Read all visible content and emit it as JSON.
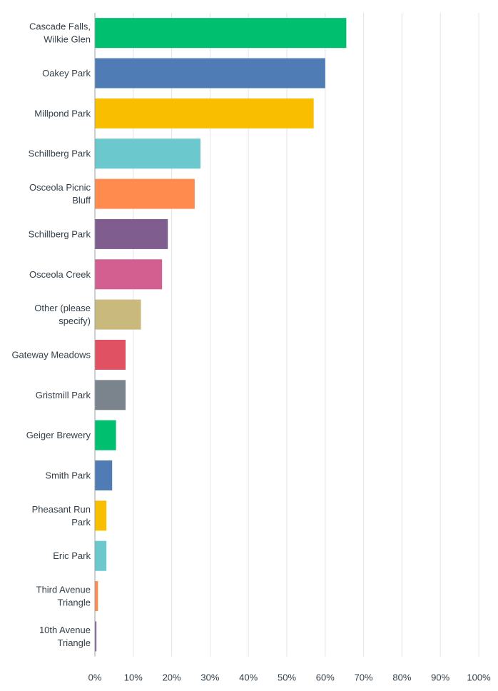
{
  "chart_data": {
    "type": "bar",
    "orientation": "horizontal",
    "categories": [
      [
        "Cascade Falls,",
        "Wilkie Glen"
      ],
      [
        "Oakey Park"
      ],
      [
        "Millpond Park"
      ],
      [
        "Schillberg Park"
      ],
      [
        "Osceola Picnic",
        "Bluff"
      ],
      [
        "Schillberg Park"
      ],
      [
        "Osceola Creek"
      ],
      [
        "Other (please",
        "specify)"
      ],
      [
        "Gateway Meadows"
      ],
      [
        "Gristmill Park"
      ],
      [
        "Geiger Brewery"
      ],
      [
        "Smith Park"
      ],
      [
        "Pheasant Run",
        "Park"
      ],
      [
        "Eric Park"
      ],
      [
        "Third Avenue",
        "Triangle"
      ],
      [
        "10th Avenue",
        "Triangle"
      ]
    ],
    "values": [
      65.5,
      60.0,
      57.0,
      27.5,
      26.0,
      19.0,
      17.5,
      12.0,
      8.0,
      8.0,
      5.5,
      4.5,
      3.0,
      3.0,
      0.8,
      0.4
    ],
    "colors": [
      "#00bf6f",
      "#507cb6",
      "#f9be00",
      "#6bc8cd",
      "#ff8b4f",
      "#7f5d8f",
      "#d25f90",
      "#c9b97d",
      "#e05263",
      "#7b848d",
      "#00bf6f",
      "#507cb6",
      "#f9be00",
      "#6bc8cd",
      "#ff8b4f",
      "#7f5d8f"
    ],
    "xlim": [
      0,
      100
    ],
    "x_ticks": [
      "0%",
      "10%",
      "20%",
      "30%",
      "40%",
      "50%",
      "60%",
      "70%",
      "80%",
      "90%",
      "100%"
    ],
    "grid": true,
    "title": "",
    "xlabel": "",
    "ylabel": ""
  }
}
